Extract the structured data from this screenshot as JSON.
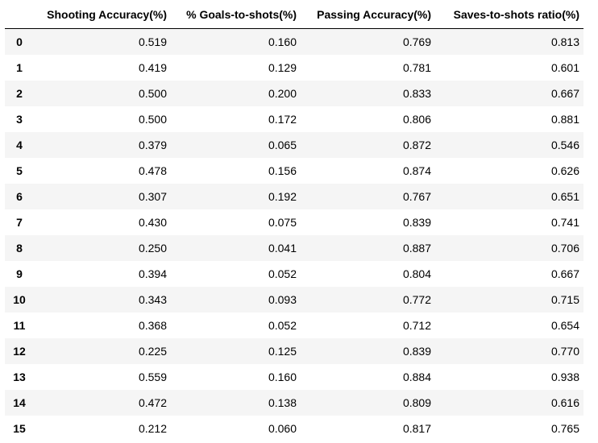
{
  "table": {
    "columns": [
      "",
      "Shooting Accuracy(%)",
      "% Goals-to-shots(%)",
      "Passing Accuracy(%)",
      "Saves-to-shots ratio(%)"
    ],
    "rows": [
      [
        "0",
        "0.519",
        "0.160",
        "0.769",
        "0.813"
      ],
      [
        "1",
        "0.419",
        "0.129",
        "0.781",
        "0.601"
      ],
      [
        "2",
        "0.500",
        "0.200",
        "0.833",
        "0.667"
      ],
      [
        "3",
        "0.500",
        "0.172",
        "0.806",
        "0.881"
      ],
      [
        "4",
        "0.379",
        "0.065",
        "0.872",
        "0.546"
      ],
      [
        "5",
        "0.478",
        "0.156",
        "0.874",
        "0.626"
      ],
      [
        "6",
        "0.307",
        "0.192",
        "0.767",
        "0.651"
      ],
      [
        "7",
        "0.430",
        "0.075",
        "0.839",
        "0.741"
      ],
      [
        "8",
        "0.250",
        "0.041",
        "0.887",
        "0.706"
      ],
      [
        "9",
        "0.394",
        "0.052",
        "0.804",
        "0.667"
      ],
      [
        "10",
        "0.343",
        "0.093",
        "0.772",
        "0.715"
      ],
      [
        "11",
        "0.368",
        "0.052",
        "0.712",
        "0.654"
      ],
      [
        "12",
        "0.225",
        "0.125",
        "0.839",
        "0.770"
      ],
      [
        "13",
        "0.559",
        "0.160",
        "0.884",
        "0.938"
      ],
      [
        "14",
        "0.472",
        "0.138",
        "0.809",
        "0.616"
      ],
      [
        "15",
        "0.212",
        "0.060",
        "0.817",
        "0.765"
      ]
    ]
  }
}
